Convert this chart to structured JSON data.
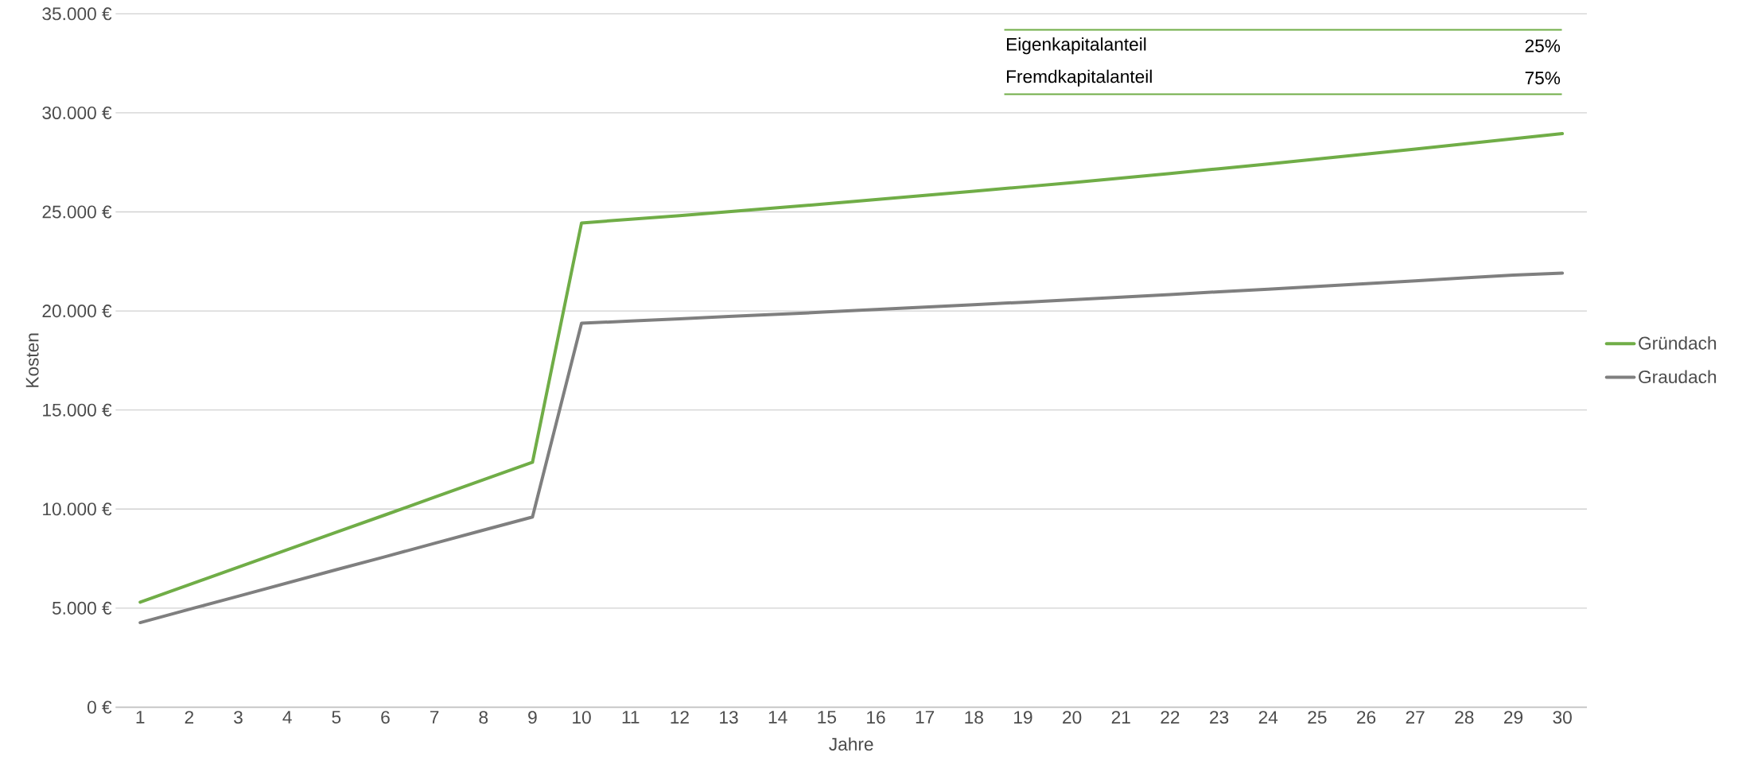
{
  "chart_data": {
    "type": "line",
    "xlabel": "Jahre",
    "ylabel": "Kosten",
    "categories": [
      "1",
      "2",
      "3",
      "4",
      "5",
      "6",
      "7",
      "8",
      "9",
      "10",
      "11",
      "12",
      "13",
      "14",
      "15",
      "16",
      "17",
      "18",
      "19",
      "20",
      "21",
      "22",
      "23",
      "24",
      "25",
      "26",
      "27",
      "28",
      "29",
      "30"
    ],
    "series": [
      {
        "name": "Gründach",
        "color": "#70ad47",
        "values": [
          5300,
          6180,
          7070,
          7950,
          8830,
          9710,
          10600,
          11480,
          12360,
          24440,
          24630,
          24810,
          25010,
          25210,
          25410,
          25620,
          25830,
          26040,
          26260,
          26480,
          26710,
          26940,
          27180,
          27420,
          27670,
          27920,
          28170,
          28430,
          28690,
          28950
        ]
      },
      {
        "name": "Graudach",
        "color": "#7f7f7f",
        "values": [
          4270,
          4940,
          5600,
          6270,
          6940,
          7600,
          8270,
          8940,
          9600,
          19380,
          19490,
          19600,
          19720,
          19830,
          19950,
          20070,
          20190,
          20320,
          20440,
          20570,
          20700,
          20830,
          20970,
          21100,
          21240,
          21380,
          21520,
          21670,
          21810,
          21910
        ]
      }
    ],
    "ylim": [
      0,
      35000
    ],
    "yticks": [
      {
        "value": 0,
        "label": "0 €"
      },
      {
        "value": 5000,
        "label": "5.000 €"
      },
      {
        "value": 10000,
        "label": "10.000 €"
      },
      {
        "value": 15000,
        "label": "15.000 €"
      },
      {
        "value": 20000,
        "label": "20.000 €"
      },
      {
        "value": 25000,
        "label": "25.000 €"
      },
      {
        "value": 30000,
        "label": "30.000 €"
      },
      {
        "value": 35000,
        "label": "35.000 €"
      }
    ],
    "grid": "y",
    "legend": "right",
    "marker": "none",
    "line_style": "solid",
    "annotations": [
      "Eigenkapitalanteil",
      "25%",
      "Fremdkapitalanteil",
      "75%"
    ]
  }
}
